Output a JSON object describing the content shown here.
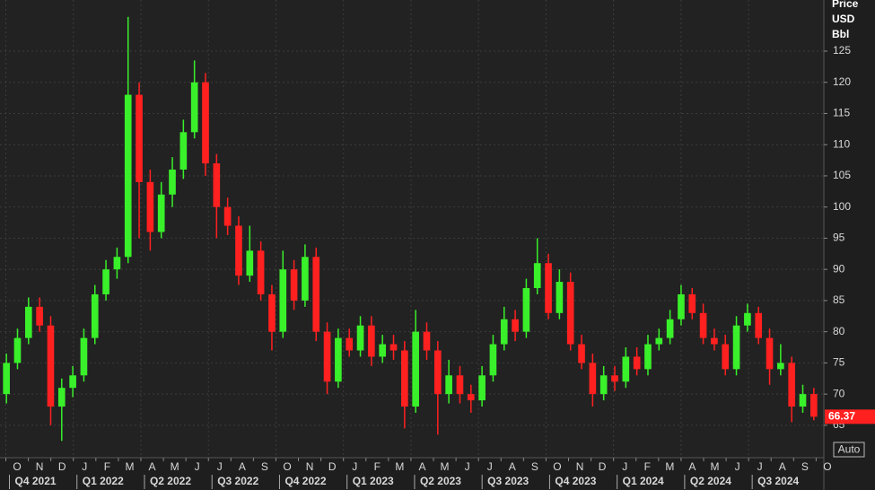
{
  "chart_data": {
    "type": "candlestick",
    "y_axis_label": [
      "Price",
      "USD",
      "Bbl"
    ],
    "last_price": 66.37,
    "button": "Auto",
    "up_color": "#39f02a",
    "down_color": "#ff2020",
    "grid": true,
    "ylim": [
      59.8,
      133.2
    ],
    "yticks": [
      65,
      70,
      75,
      80,
      85,
      90,
      95,
      100,
      105,
      110,
      115,
      120,
      125
    ],
    "months": [
      "O",
      "N",
      "D",
      "J",
      "F",
      "M",
      "A",
      "M",
      "J",
      "J",
      "A",
      "S",
      "O",
      "N",
      "D",
      "J",
      "F",
      "M",
      "A",
      "M",
      "J",
      "J",
      "A",
      "S",
      "O",
      "N",
      "D",
      "J",
      "F",
      "M",
      "A",
      "M",
      "J",
      "J",
      "A",
      "S",
      "O"
    ],
    "quarters": [
      "Q4 2021",
      "Q1 2022",
      "Q2 2022",
      "Q3 2022",
      "Q4 2022",
      "Q1 2023",
      "Q2 2023",
      "Q3 2023",
      "Q4 2023",
      "Q1 2024",
      "Q2 2024",
      "Q3 2024"
    ],
    "open": [
      70,
      75,
      79,
      84,
      81,
      68,
      71,
      73,
      79,
      86,
      90,
      92,
      118,
      104,
      96,
      102,
      106,
      112,
      120,
      107,
      100,
      97,
      89,
      93,
      86,
      80,
      90,
      85,
      92,
      80,
      72,
      79,
      77,
      81,
      76,
      78,
      77,
      68,
      80,
      77,
      70,
      73,
      70,
      69,
      73,
      78,
      82,
      80,
      87,
      91,
      83,
      88,
      78,
      75,
      70,
      73,
      72,
      76,
      74,
      78,
      79,
      82,
      86,
      83,
      79,
      78,
      74,
      81,
      83,
      79,
      74,
      75,
      68,
      70
    ],
    "high": [
      76.5,
      80.5,
      85.5,
      85.5,
      82.5,
      72.5,
      74.5,
      80.5,
      87.5,
      91.5,
      93.5,
      130.5,
      120,
      106,
      104,
      108,
      114,
      123.5,
      121.5,
      108.5,
      101.5,
      98.5,
      97,
      94.5,
      87.5,
      93,
      91.5,
      94,
      93.5,
      81.5,
      80.5,
      80.5,
      82.5,
      82.5,
      79.5,
      79.5,
      78.5,
      83.5,
      81.5,
      78.5,
      75.5,
      74.5,
      71.5,
      74.5,
      79.5,
      84,
      83.5,
      88.5,
      95,
      92.5,
      90,
      89.5,
      79.5,
      76.5,
      74.5,
      74.5,
      77.5,
      77.5,
      79.5,
      80.5,
      83.5,
      87.5,
      87,
      84.5,
      80.5,
      79.5,
      82.5,
      84.5,
      84,
      80.5,
      78,
      76,
      71.5,
      71
    ],
    "low": [
      68.5,
      74,
      78,
      80,
      65,
      62.5,
      69.5,
      72,
      78,
      85,
      88.5,
      91,
      95,
      93,
      95,
      100,
      104.5,
      111,
      105,
      95,
      95.5,
      87.5,
      88,
      85,
      77,
      79,
      83.5,
      84,
      78.5,
      70,
      71,
      76,
      76,
      74.5,
      75,
      75.5,
      64.5,
      67,
      75.5,
      63.5,
      68.5,
      68.5,
      67,
      68,
      72,
      77,
      78.5,
      79,
      86,
      82,
      82,
      77,
      74,
      68,
      69,
      70.5,
      71,
      73,
      73,
      77,
      78,
      81,
      82,
      78,
      77,
      73,
      73,
      80,
      78,
      71.5,
      73,
      65.5,
      67,
      65.8
    ],
    "close": [
      75,
      79,
      84,
      81,
      68,
      71,
      73,
      79,
      86,
      90,
      92,
      118,
      104,
      96,
      102,
      106,
      112,
      120,
      107,
      100,
      97,
      89,
      93,
      86,
      80,
      90,
      85,
      92,
      80,
      72,
      79,
      77,
      81,
      76,
      78,
      77,
      68,
      80,
      77,
      70,
      73,
      70,
      69,
      73,
      78,
      82,
      80,
      87,
      91,
      83,
      88,
      78,
      75,
      70,
      73,
      72,
      76,
      74,
      78,
      79,
      82,
      86,
      83,
      79,
      78,
      74,
      81,
      83,
      79,
      74,
      75,
      68,
      70,
      66.37
    ]
  }
}
